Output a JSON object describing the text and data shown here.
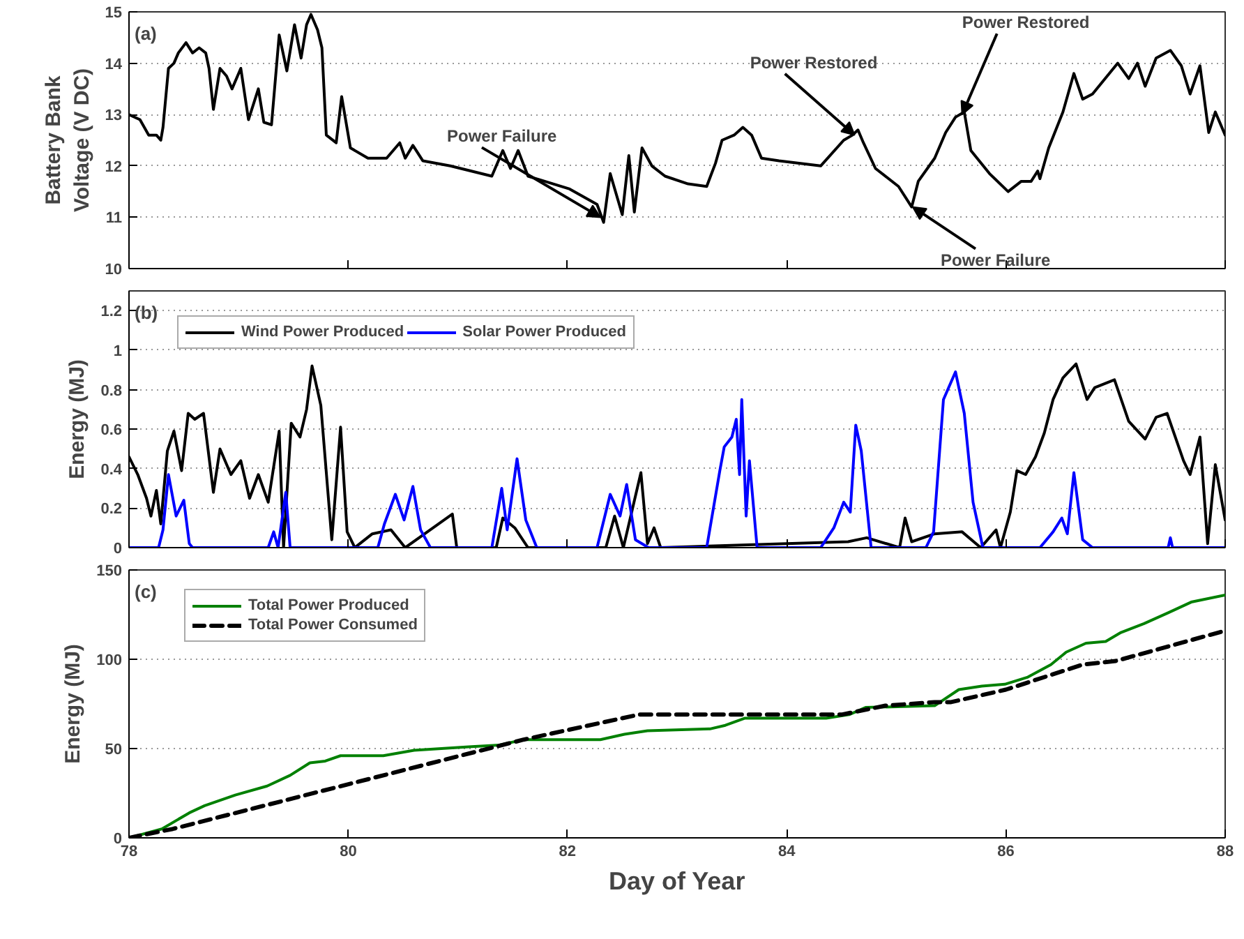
{
  "chart_data": [
    {
      "type": "line",
      "ylabel": "Battery Bank\nVoltage (V DC)",
      "xlim": [
        78,
        88
      ],
      "xticks": [
        78,
        80,
        82,
        84,
        86,
        88
      ],
      "ylim": [
        10,
        15
      ],
      "yticks": [
        10,
        11,
        12,
        13,
        14,
        15
      ],
      "grid": "y",
      "tick_labels": "y",
      "line_style": "solid",
      "legend": false,
      "annotations": [
        "(a)",
        {
          "text": "Power Failure",
          "x": 82.3,
          "y": 11.0
        },
        {
          "text": "Power Restored",
          "x": 84.62,
          "y": 12.6
        },
        {
          "text": "Power Failure",
          "x": 85.15,
          "y": 11.2
        },
        {
          "text": "Power Restored",
          "x": 85.6,
          "y": 13.0
        }
      ],
      "series": [
        {
          "color": "#000000",
          "x": [
            78.0,
            78.1,
            78.18,
            78.25,
            78.29,
            78.31,
            78.36,
            78.41,
            78.45,
            78.52,
            78.58,
            78.64,
            78.7,
            78.73,
            78.77,
            78.83,
            78.89,
            78.94,
            79.02,
            79.09,
            79.18,
            79.23,
            79.3,
            79.37,
            79.44,
            79.51,
            79.57,
            79.62,
            79.66,
            79.72,
            79.76,
            79.8,
            79.89,
            79.94,
            80.02,
            80.18,
            80.35,
            80.47,
            80.52,
            80.59,
            80.68,
            80.93,
            81.31,
            81.41,
            81.48,
            81.55,
            81.64,
            82.02,
            82.27,
            82.33,
            82.39,
            82.5,
            82.56,
            82.61,
            82.68,
            82.77,
            82.89,
            83.1,
            83.27,
            83.35,
            83.41,
            83.52,
            83.6,
            83.68,
            83.77,
            83.93,
            84.31,
            84.52,
            84.6,
            84.65,
            84.7,
            84.81,
            85.02,
            85.14,
            85.2,
            85.35,
            85.45,
            85.54,
            85.62,
            85.68,
            85.85,
            86.02,
            86.14,
            86.23,
            86.29,
            86.31,
            86.39,
            86.52,
            86.62,
            86.7,
            86.79,
            87.02,
            87.12,
            87.2,
            87.27,
            87.37,
            87.5,
            87.6,
            87.68,
            87.77,
            87.85,
            87.91,
            88.0
          ],
          "values": [
            13.0,
            12.9,
            12.6,
            12.6,
            12.5,
            12.75,
            13.9,
            14.0,
            14.2,
            14.4,
            14.2,
            14.3,
            14.2,
            13.9,
            13.1,
            13.9,
            13.75,
            13.5,
            13.9,
            12.9,
            13.5,
            12.85,
            12.8,
            14.55,
            13.85,
            14.75,
            14.1,
            14.75,
            14.95,
            14.65,
            14.3,
            12.6,
            12.45,
            13.35,
            12.35,
            12.15,
            12.15,
            12.45,
            12.15,
            12.4,
            12.1,
            12.0,
            11.8,
            12.3,
            11.95,
            12.3,
            11.8,
            11.55,
            11.25,
            10.9,
            11.85,
            11.05,
            12.2,
            11.1,
            12.35,
            12.0,
            11.8,
            11.65,
            11.6,
            12.05,
            12.5,
            12.6,
            12.75,
            12.6,
            12.15,
            12.1,
            12.0,
            12.5,
            12.6,
            12.7,
            12.45,
            11.95,
            11.6,
            11.2,
            11.7,
            12.15,
            12.65,
            12.95,
            13.05,
            12.3,
            11.85,
            11.5,
            11.7,
            11.7,
            11.9,
            11.75,
            12.35,
            13.05,
            13.8,
            13.3,
            13.4,
            14.0,
            13.7,
            14.0,
            13.55,
            14.1,
            14.25,
            13.95,
            13.4,
            13.95,
            12.65,
            13.05,
            12.6
          ]
        }
      ]
    },
    {
      "type": "line",
      "ylabel": "Energy (MJ)",
      "xlim": [
        78,
        88
      ],
      "xticks": [
        78,
        80,
        82,
        84,
        86,
        88
      ],
      "ylim": [
        0,
        1.3
      ],
      "yticks": [
        0,
        0.2,
        0.4,
        0.6,
        0.8,
        1,
        1.2
      ],
      "grid": "y",
      "tick_labels": "y",
      "line_style": "solid",
      "legend": "top left",
      "annotations": [
        "(b)"
      ],
      "series": [
        {
          "name": "Wind Power Produced",
          "color": "#000000",
          "x": [
            78.0,
            78.08,
            78.16,
            78.2,
            78.25,
            78.29,
            78.35,
            78.41,
            78.48,
            78.54,
            78.6,
            78.68,
            78.77,
            78.83,
            78.93,
            79.02,
            79.1,
            79.18,
            79.27,
            79.37,
            79.41,
            79.48,
            79.56,
            79.62,
            79.67,
            79.75,
            79.85,
            79.93,
            79.99,
            80.06,
            80.22,
            80.39,
            80.52,
            80.95,
            80.99,
            81.35,
            81.41,
            81.52,
            81.64,
            82.35,
            82.43,
            82.51,
            82.67,
            82.73,
            82.79,
            82.85,
            84.56,
            84.73,
            85.03,
            85.08,
            85.14,
            85.35,
            85.6,
            85.77,
            85.91,
            85.95,
            86.04,
            86.1,
            86.18,
            86.27,
            86.35,
            86.43,
            86.52,
            86.64,
            86.74,
            86.81,
            86.99,
            87.12,
            87.27,
            87.37,
            87.47,
            87.62,
            87.68,
            87.77,
            87.84,
            87.91,
            88.0
          ],
          "values": [
            0.46,
            0.37,
            0.25,
            0.16,
            0.29,
            0.12,
            0.49,
            0.59,
            0.39,
            0.68,
            0.65,
            0.68,
            0.28,
            0.5,
            0.37,
            0.44,
            0.25,
            0.37,
            0.23,
            0.59,
            0.0,
            0.63,
            0.56,
            0.7,
            0.92,
            0.72,
            0.04,
            0.61,
            0.08,
            0.0,
            0.07,
            0.09,
            0.0,
            0.17,
            0.0,
            0.0,
            0.15,
            0.1,
            0.0,
            0.0,
            0.16,
            0.0,
            0.38,
            0.02,
            0.1,
            0.0,
            0.03,
            0.05,
            0.0,
            0.15,
            0.03,
            0.07,
            0.08,
            0.0,
            0.09,
            0.0,
            0.18,
            0.39,
            0.37,
            0.46,
            0.58,
            0.75,
            0.86,
            0.93,
            0.75,
            0.81,
            0.85,
            0.64,
            0.55,
            0.66,
            0.68,
            0.44,
            0.37,
            0.56,
            0.02,
            0.42,
            0.14
          ]
        },
        {
          "name": "Solar Power Produced",
          "color": "#0000ff",
          "x": [
            78.0,
            78.27,
            78.31,
            78.36,
            78.43,
            78.5,
            78.55,
            78.58,
            79.27,
            79.32,
            79.36,
            79.43,
            79.47,
            80.27,
            80.33,
            80.43,
            80.51,
            80.59,
            80.66,
            80.75,
            81.31,
            81.4,
            81.45,
            81.54,
            81.62,
            81.72,
            82.27,
            82.39,
            82.48,
            82.54,
            82.62,
            82.74,
            83.27,
            83.39,
            83.43,
            83.5,
            83.54,
            83.57,
            83.59,
            83.63,
            83.66,
            83.73,
            84.31,
            84.43,
            84.52,
            84.58,
            84.63,
            84.68,
            84.77,
            85.27,
            85.34,
            85.43,
            85.54,
            85.62,
            85.7,
            85.79,
            86.31,
            86.43,
            86.51,
            86.56,
            86.62,
            86.7,
            86.79,
            87.48,
            87.5,
            87.52,
            88.0
          ],
          "values": [
            0,
            0,
            0.09,
            0.37,
            0.16,
            0.24,
            0.02,
            0,
            0,
            0.08,
            0,
            0.28,
            0,
            0,
            0.12,
            0.27,
            0.14,
            0.31,
            0.09,
            0,
            0,
            0.3,
            0.09,
            0.45,
            0.14,
            0,
            0,
            0.27,
            0.16,
            0.32,
            0.04,
            0,
            0,
            0.39,
            0.51,
            0.56,
            0.65,
            0.37,
            0.75,
            0.16,
            0.44,
            0,
            0,
            0.1,
            0.23,
            0.18,
            0.62,
            0.49,
            0,
            0,
            0.08,
            0.75,
            0.89,
            0.68,
            0.23,
            0,
            0,
            0.08,
            0.15,
            0.07,
            0.38,
            0.04,
            0,
            0,
            0.05,
            0,
            0
          ]
        }
      ]
    },
    {
      "type": "line",
      "ylabel": "Energy (MJ)",
      "xlabel": "Day of Year",
      "xlim": [
        78,
        88
      ],
      "xticks": [
        78,
        80,
        82,
        84,
        86,
        88
      ],
      "ylim": [
        0,
        150
      ],
      "yticks": [
        0,
        50,
        100,
        150
      ],
      "grid": "y",
      "legend": "top left",
      "annotations": [
        "(c)"
      ],
      "series": [
        {
          "name": "Total Power Produced",
          "color": "#008000",
          "line_style": "solid",
          "x": [
            78,
            78.3,
            78.55,
            78.69,
            78.97,
            79.26,
            79.47,
            79.65,
            79.79,
            79.93,
            80.32,
            80.6,
            81.1,
            81.38,
            81.6,
            82.3,
            82.52,
            82.73,
            83.3,
            83.44,
            83.62,
            84.36,
            84.57,
            84.72,
            85.35,
            85.57,
            85.78,
            85.99,
            86.2,
            86.41,
            86.55,
            86.73,
            86.91,
            87.05,
            87.26,
            87.48,
            87.69,
            88
          ],
          "values": [
            0,
            5,
            14,
            18,
            24,
            29,
            35,
            42,
            43,
            46,
            46,
            49,
            51,
            52,
            55,
            55,
            58,
            60,
            61,
            63,
            67,
            67,
            69,
            73,
            74,
            83,
            85,
            86,
            90,
            97,
            104,
            109,
            110,
            115,
            120,
            126,
            132,
            136
          ]
        },
        {
          "name": "Total Power Consumed",
          "color": "#000000",
          "line_style": "dashed",
          "x": [
            78,
            78.4,
            81.6,
            82.65,
            84.5,
            84.9,
            85.35,
            85.5,
            86.0,
            86.7,
            87.0,
            88
          ],
          "values": [
            0,
            5,
            55,
            69,
            69,
            74,
            76,
            76,
            83,
            97,
            99,
            116
          ]
        }
      ]
    }
  ]
}
